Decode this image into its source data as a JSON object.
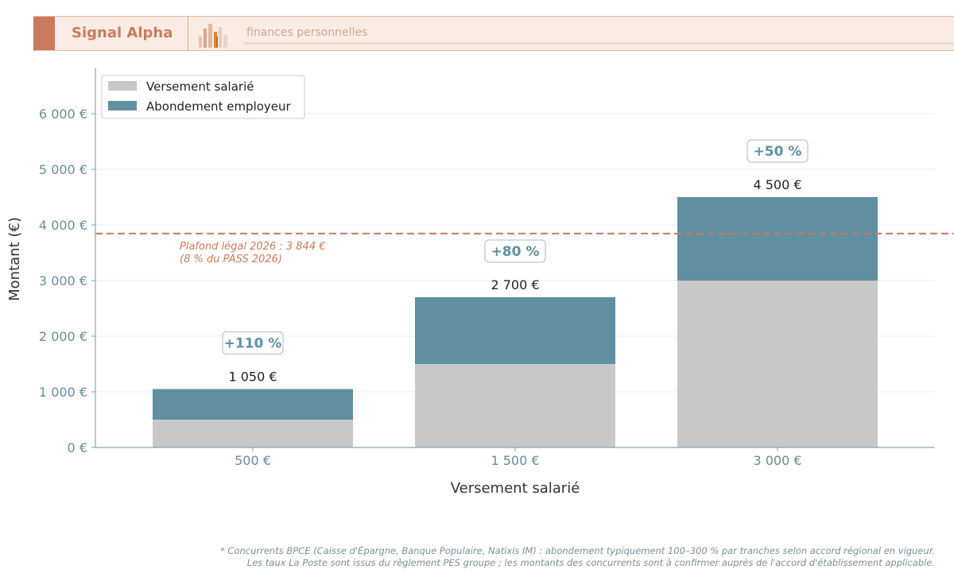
{
  "header": {
    "brand": "Signal Alpha",
    "tagline": "finances personnelles",
    "logo_icon": "bar-chart-icon"
  },
  "colors": {
    "salarie": "#c8c8c8",
    "employeur": "#5f8fa0",
    "plafond": "#c87b5d",
    "axis_text": "#6b8a99"
  },
  "chart_data": {
    "type": "bar",
    "stacked": true,
    "categories": [
      "500 €",
      "1 500 €",
      "3 000 €"
    ],
    "series": [
      {
        "name": "Versement salarié",
        "values": [
          500,
          1500,
          3000
        ]
      },
      {
        "name": "Abondement employeur",
        "values": [
          550,
          1200,
          1500
        ]
      }
    ],
    "totals": [
      "1 050 €",
      "2 700 €",
      "4 500 €"
    ],
    "total_values": [
      1050,
      2700,
      4500
    ],
    "badges": [
      "+110 %",
      "+80 %",
      "+50 %"
    ],
    "xlabel": "Versement salarié",
    "ylabel": "Montant (€)",
    "ylim": [
      0,
      6800
    ],
    "yticks": [
      0,
      1000,
      2000,
      3000,
      4000,
      5000,
      6000
    ],
    "ytick_labels": [
      "0 €",
      "1 000 €",
      "2 000 €",
      "3 000 €",
      "4 000 €",
      "5 000 €",
      "6 000 €"
    ],
    "reference_line": {
      "value": 3844,
      "label_line1": "Plafond légal 2026 : 3 844 €",
      "label_line2": "(8 % du PASS 2026)"
    },
    "legend_position": "top-left",
    "grid": true
  },
  "footnote": {
    "line1": "* Concurrents BPCE (Caisse d'Épargne, Banque Populaire, Natixis IM) : abondement typiquement 100–300 % par tranches selon accord régional en vigueur.",
    "line2": "Les taux La Poste sont issus du règlement PES groupe ; les montants des concurrents sont à confirmer auprès de l'accord d'établissement applicable."
  }
}
